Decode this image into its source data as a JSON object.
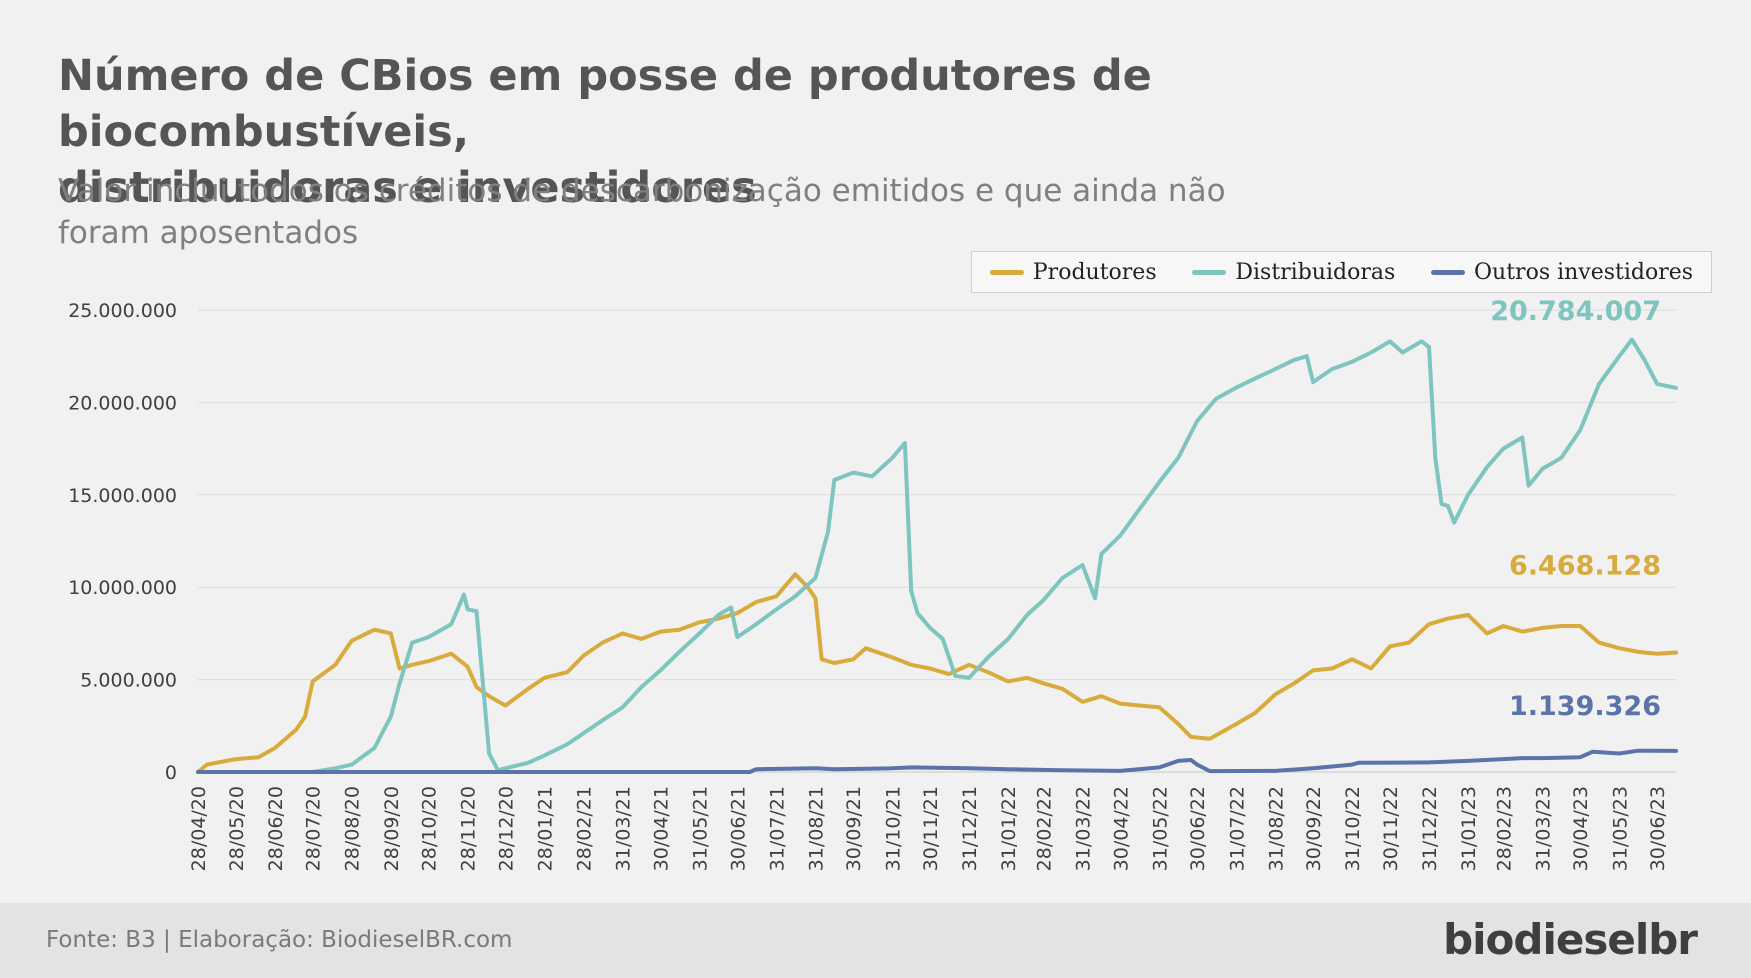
{
  "title": {
    "line1": "Número de CBios em posse de produtores de biocombustíveis,",
    "line2": "distribuidoras e investidores"
  },
  "subtitle": {
    "line1": "Valor inclui todos os créditos de descarbonização emitidos e que ainda não",
    "line2": "foram aposentados"
  },
  "footer": {
    "source": "Fonte: B3 | Elaboração: BiodieselBR.com",
    "logo": "biodieselbr"
  },
  "chart_data": {
    "type": "line",
    "title": "Número de CBios em posse de produtores de biocombustíveis, distribuidoras e investidores",
    "subtitle": "Valor inclui todos os créditos de descarbonização emitidos e que ainda não foram aposentados",
    "xlabel": "",
    "ylabel": "",
    "ylim": [
      0,
      25000000
    ],
    "y_ticks": [
      0,
      5000000,
      10000000,
      15000000,
      20000000,
      25000000
    ],
    "y_tick_labels": [
      "0",
      "5.000.000",
      "10.000.000",
      "15.000.000",
      "20.000.000",
      "25.000.000"
    ],
    "grid": true,
    "legend_position": "top-right",
    "x_start": "28/04/20",
    "x_end": "15/07/23",
    "x_tick_labels": [
      "28/04/20",
      "28/05/20",
      "28/06/20",
      "28/07/20",
      "28/08/20",
      "28/09/20",
      "28/10/20",
      "28/11/20",
      "28/12/20",
      "28/01/21",
      "28/02/21",
      "31/03/21",
      "30/04/21",
      "31/05/21",
      "30/06/21",
      "31/07/21",
      "31/08/21",
      "30/09/21",
      "31/10/21",
      "30/11/21",
      "31/12/21",
      "31/01/22",
      "28/02/22",
      "31/03/22",
      "30/04/22",
      "31/05/22",
      "30/06/22",
      "31/07/22",
      "31/08/22",
      "30/09/22",
      "31/10/22",
      "30/11/22",
      "31/12/22",
      "31/01/23",
      "28/02/23",
      "31/03/23",
      "30/04/23",
      "31/05/23",
      "30/06/23"
    ],
    "series": [
      {
        "name": "Produtores",
        "color": "#d9aa3c",
        "end_label": "6.468.128",
        "points": [
          [
            "28/04/20",
            0
          ],
          [
            "05/05/20",
            400000
          ],
          [
            "28/05/20",
            700000
          ],
          [
            "15/06/20",
            800000
          ],
          [
            "28/06/20",
            1300000
          ],
          [
            "15/07/20",
            2300000
          ],
          [
            "22/07/20",
            3000000
          ],
          [
            "28/07/20",
            4900000
          ],
          [
            "15/08/20",
            5800000
          ],
          [
            "28/08/20",
            7100000
          ],
          [
            "15/09/20",
            7700000
          ],
          [
            "28/09/20",
            7500000
          ],
          [
            "05/10/20",
            5600000
          ],
          [
            "15/10/20",
            5800000
          ],
          [
            "28/10/20",
            6000000
          ],
          [
            "15/11/20",
            6400000
          ],
          [
            "28/11/20",
            5700000
          ],
          [
            "05/12/20",
            4600000
          ],
          [
            "15/12/20",
            4100000
          ],
          [
            "28/12/20",
            3600000
          ],
          [
            "15/01/21",
            4500000
          ],
          [
            "28/01/21",
            5100000
          ],
          [
            "15/02/21",
            5400000
          ],
          [
            "28/02/21",
            6300000
          ],
          [
            "15/03/21",
            7000000
          ],
          [
            "31/03/21",
            7500000
          ],
          [
            "15/04/21",
            7200000
          ],
          [
            "30/04/21",
            7600000
          ],
          [
            "15/05/21",
            7700000
          ],
          [
            "31/05/21",
            8100000
          ],
          [
            "15/06/21",
            8300000
          ],
          [
            "30/06/21",
            8600000
          ],
          [
            "15/07/21",
            9200000
          ],
          [
            "31/07/21",
            9500000
          ],
          [
            "15/08/21",
            10700000
          ],
          [
            "25/08/21",
            10000000
          ],
          [
            "31/08/21",
            9400000
          ],
          [
            "05/09/21",
            6100000
          ],
          [
            "15/09/21",
            5900000
          ],
          [
            "30/09/21",
            6100000
          ],
          [
            "10/10/21",
            6700000
          ],
          [
            "31/10/21",
            6200000
          ],
          [
            "15/11/21",
            5800000
          ],
          [
            "30/11/21",
            5600000
          ],
          [
            "15/12/21",
            5300000
          ],
          [
            "31/12/21",
            5800000
          ],
          [
            "15/01/22",
            5400000
          ],
          [
            "31/01/22",
            4900000
          ],
          [
            "15/02/22",
            5100000
          ],
          [
            "28/02/22",
            4800000
          ],
          [
            "15/03/22",
            4500000
          ],
          [
            "31/03/22",
            3800000
          ],
          [
            "15/04/22",
            4100000
          ],
          [
            "30/04/22",
            3700000
          ],
          [
            "15/05/22",
            3600000
          ],
          [
            "31/05/22",
            3500000
          ],
          [
            "15/06/22",
            2600000
          ],
          [
            "25/06/22",
            1900000
          ],
          [
            "10/07/22",
            1800000
          ],
          [
            "31/07/22",
            2600000
          ],
          [
            "15/08/22",
            3200000
          ],
          [
            "31/08/22",
            4200000
          ],
          [
            "15/09/22",
            4800000
          ],
          [
            "30/09/22",
            5500000
          ],
          [
            "15/10/22",
            5600000
          ],
          [
            "31/10/22",
            6100000
          ],
          [
            "15/11/22",
            5600000
          ],
          [
            "30/11/22",
            6800000
          ],
          [
            "15/12/22",
            7000000
          ],
          [
            "31/12/22",
            8000000
          ],
          [
            "15/01/23",
            8300000
          ],
          [
            "31/01/23",
            8500000
          ],
          [
            "15/02/23",
            7500000
          ],
          [
            "28/02/23",
            7900000
          ],
          [
            "15/03/23",
            7600000
          ],
          [
            "31/03/23",
            7800000
          ],
          [
            "15/04/23",
            7900000
          ],
          [
            "30/04/23",
            7900000
          ],
          [
            "15/05/23",
            7000000
          ],
          [
            "31/05/23",
            6700000
          ],
          [
            "15/06/23",
            6500000
          ],
          [
            "30/06/23",
            6400000
          ],
          [
            "15/07/23",
            6468128
          ]
        ]
      },
      {
        "name": "Distribuidoras",
        "color": "#7ec4bf",
        "end_label": "20.784.007",
        "points": [
          [
            "28/07/20",
            0
          ],
          [
            "15/08/20",
            200000
          ],
          [
            "28/08/20",
            400000
          ],
          [
            "15/09/20",
            1300000
          ],
          [
            "28/09/20",
            3000000
          ],
          [
            "05/10/20",
            4800000
          ],
          [
            "15/10/20",
            7000000
          ],
          [
            "28/10/20",
            7300000
          ],
          [
            "15/11/20",
            8000000
          ],
          [
            "25/11/20",
            9600000
          ],
          [
            "28/11/20",
            8800000
          ],
          [
            "05/12/20",
            8700000
          ],
          [
            "15/12/20",
            1000000
          ],
          [
            "22/12/20",
            100000
          ],
          [
            "28/12/20",
            200000
          ],
          [
            "15/01/21",
            500000
          ],
          [
            "28/01/21",
            900000
          ],
          [
            "15/02/21",
            1500000
          ],
          [
            "28/02/21",
            2100000
          ],
          [
            "15/03/21",
            2800000
          ],
          [
            "31/03/21",
            3500000
          ],
          [
            "15/04/21",
            4600000
          ],
          [
            "30/04/21",
            5500000
          ],
          [
            "15/05/21",
            6500000
          ],
          [
            "31/05/21",
            7500000
          ],
          [
            "15/06/21",
            8500000
          ],
          [
            "25/06/21",
            8900000
          ],
          [
            "30/06/21",
            7300000
          ],
          [
            "15/07/21",
            8000000
          ],
          [
            "31/07/21",
            8800000
          ],
          [
            "15/08/21",
            9500000
          ],
          [
            "31/08/21",
            10500000
          ],
          [
            "10/09/21",
            13000000
          ],
          [
            "15/09/21",
            15800000
          ],
          [
            "30/09/21",
            16200000
          ],
          [
            "15/10/21",
            16000000
          ],
          [
            "31/10/21",
            17000000
          ],
          [
            "10/11/21",
            17800000
          ],
          [
            "15/11/21",
            9800000
          ],
          [
            "20/11/21",
            8600000
          ],
          [
            "30/11/21",
            7800000
          ],
          [
            "10/12/21",
            7200000
          ],
          [
            "20/12/21",
            5200000
          ],
          [
            "31/12/21",
            5100000
          ],
          [
            "15/01/22",
            6200000
          ],
          [
            "31/01/22",
            7200000
          ],
          [
            "15/02/22",
            8500000
          ],
          [
            "28/02/22",
            9300000
          ],
          [
            "15/03/22",
            10500000
          ],
          [
            "31/03/22",
            11200000
          ],
          [
            "10/04/22",
            9400000
          ],
          [
            "15/04/22",
            11800000
          ],
          [
            "30/04/22",
            12800000
          ],
          [
            "15/05/22",
            14200000
          ],
          [
            "31/05/22",
            15700000
          ],
          [
            "15/06/22",
            17000000
          ],
          [
            "30/06/22",
            19000000
          ],
          [
            "15/07/22",
            20200000
          ],
          [
            "31/07/22",
            20800000
          ],
          [
            "15/08/22",
            21300000
          ],
          [
            "31/08/22",
            21800000
          ],
          [
            "15/09/22",
            22300000
          ],
          [
            "25/09/22",
            22500000
          ],
          [
            "30/09/22",
            21100000
          ],
          [
            "15/10/22",
            21800000
          ],
          [
            "31/10/22",
            22200000
          ],
          [
            "15/11/22",
            22700000
          ],
          [
            "30/11/22",
            23300000
          ],
          [
            "10/12/22",
            22700000
          ],
          [
            "25/12/22",
            23300000
          ],
          [
            "31/12/22",
            23000000
          ],
          [
            "05/01/23",
            17000000
          ],
          [
            "10/01/23",
            14500000
          ],
          [
            "15/01/23",
            14400000
          ],
          [
            "20/01/23",
            13500000
          ],
          [
            "31/01/23",
            15000000
          ],
          [
            "15/02/23",
            16500000
          ],
          [
            "28/02/23",
            17500000
          ],
          [
            "15/03/23",
            18100000
          ],
          [
            "20/03/23",
            15500000
          ],
          [
            "31/03/23",
            16400000
          ],
          [
            "15/04/23",
            17000000
          ],
          [
            "30/04/23",
            18500000
          ],
          [
            "15/05/23",
            21000000
          ],
          [
            "31/05/23",
            22500000
          ],
          [
            "10/06/23",
            23400000
          ],
          [
            "20/06/23",
            22300000
          ],
          [
            "30/06/23",
            21000000
          ],
          [
            "15/07/23",
            20784007
          ]
        ]
      },
      {
        "name": "Outros investidores",
        "color": "#5a73a8",
        "end_label": "1.139.326",
        "points": [
          [
            "28/04/20",
            0
          ],
          [
            "10/07/21",
            0
          ],
          [
            "15/07/21",
            150000
          ],
          [
            "31/08/21",
            200000
          ],
          [
            "15/09/21",
            150000
          ],
          [
            "31/10/21",
            200000
          ],
          [
            "15/11/21",
            250000
          ],
          [
            "31/12/21",
            200000
          ],
          [
            "31/01/22",
            150000
          ],
          [
            "15/03/22",
            100000
          ],
          [
            "30/04/22",
            60000
          ],
          [
            "31/05/22",
            250000
          ],
          [
            "15/06/22",
            600000
          ],
          [
            "25/06/22",
            650000
          ],
          [
            "30/06/22",
            400000
          ],
          [
            "10/07/22",
            50000
          ],
          [
            "31/08/22",
            60000
          ],
          [
            "30/09/22",
            200000
          ],
          [
            "31/10/22",
            400000
          ],
          [
            "05/11/22",
            500000
          ],
          [
            "31/12/22",
            520000
          ],
          [
            "31/01/23",
            600000
          ],
          [
            "28/02/23",
            700000
          ],
          [
            "15/03/23",
            750000
          ],
          [
            "31/03/23",
            750000
          ],
          [
            "30/04/23",
            800000
          ],
          [
            "10/05/23",
            1100000
          ],
          [
            "31/05/23",
            1000000
          ],
          [
            "15/06/23",
            1150000
          ],
          [
            "15/07/23",
            1139326
          ]
        ]
      }
    ]
  }
}
